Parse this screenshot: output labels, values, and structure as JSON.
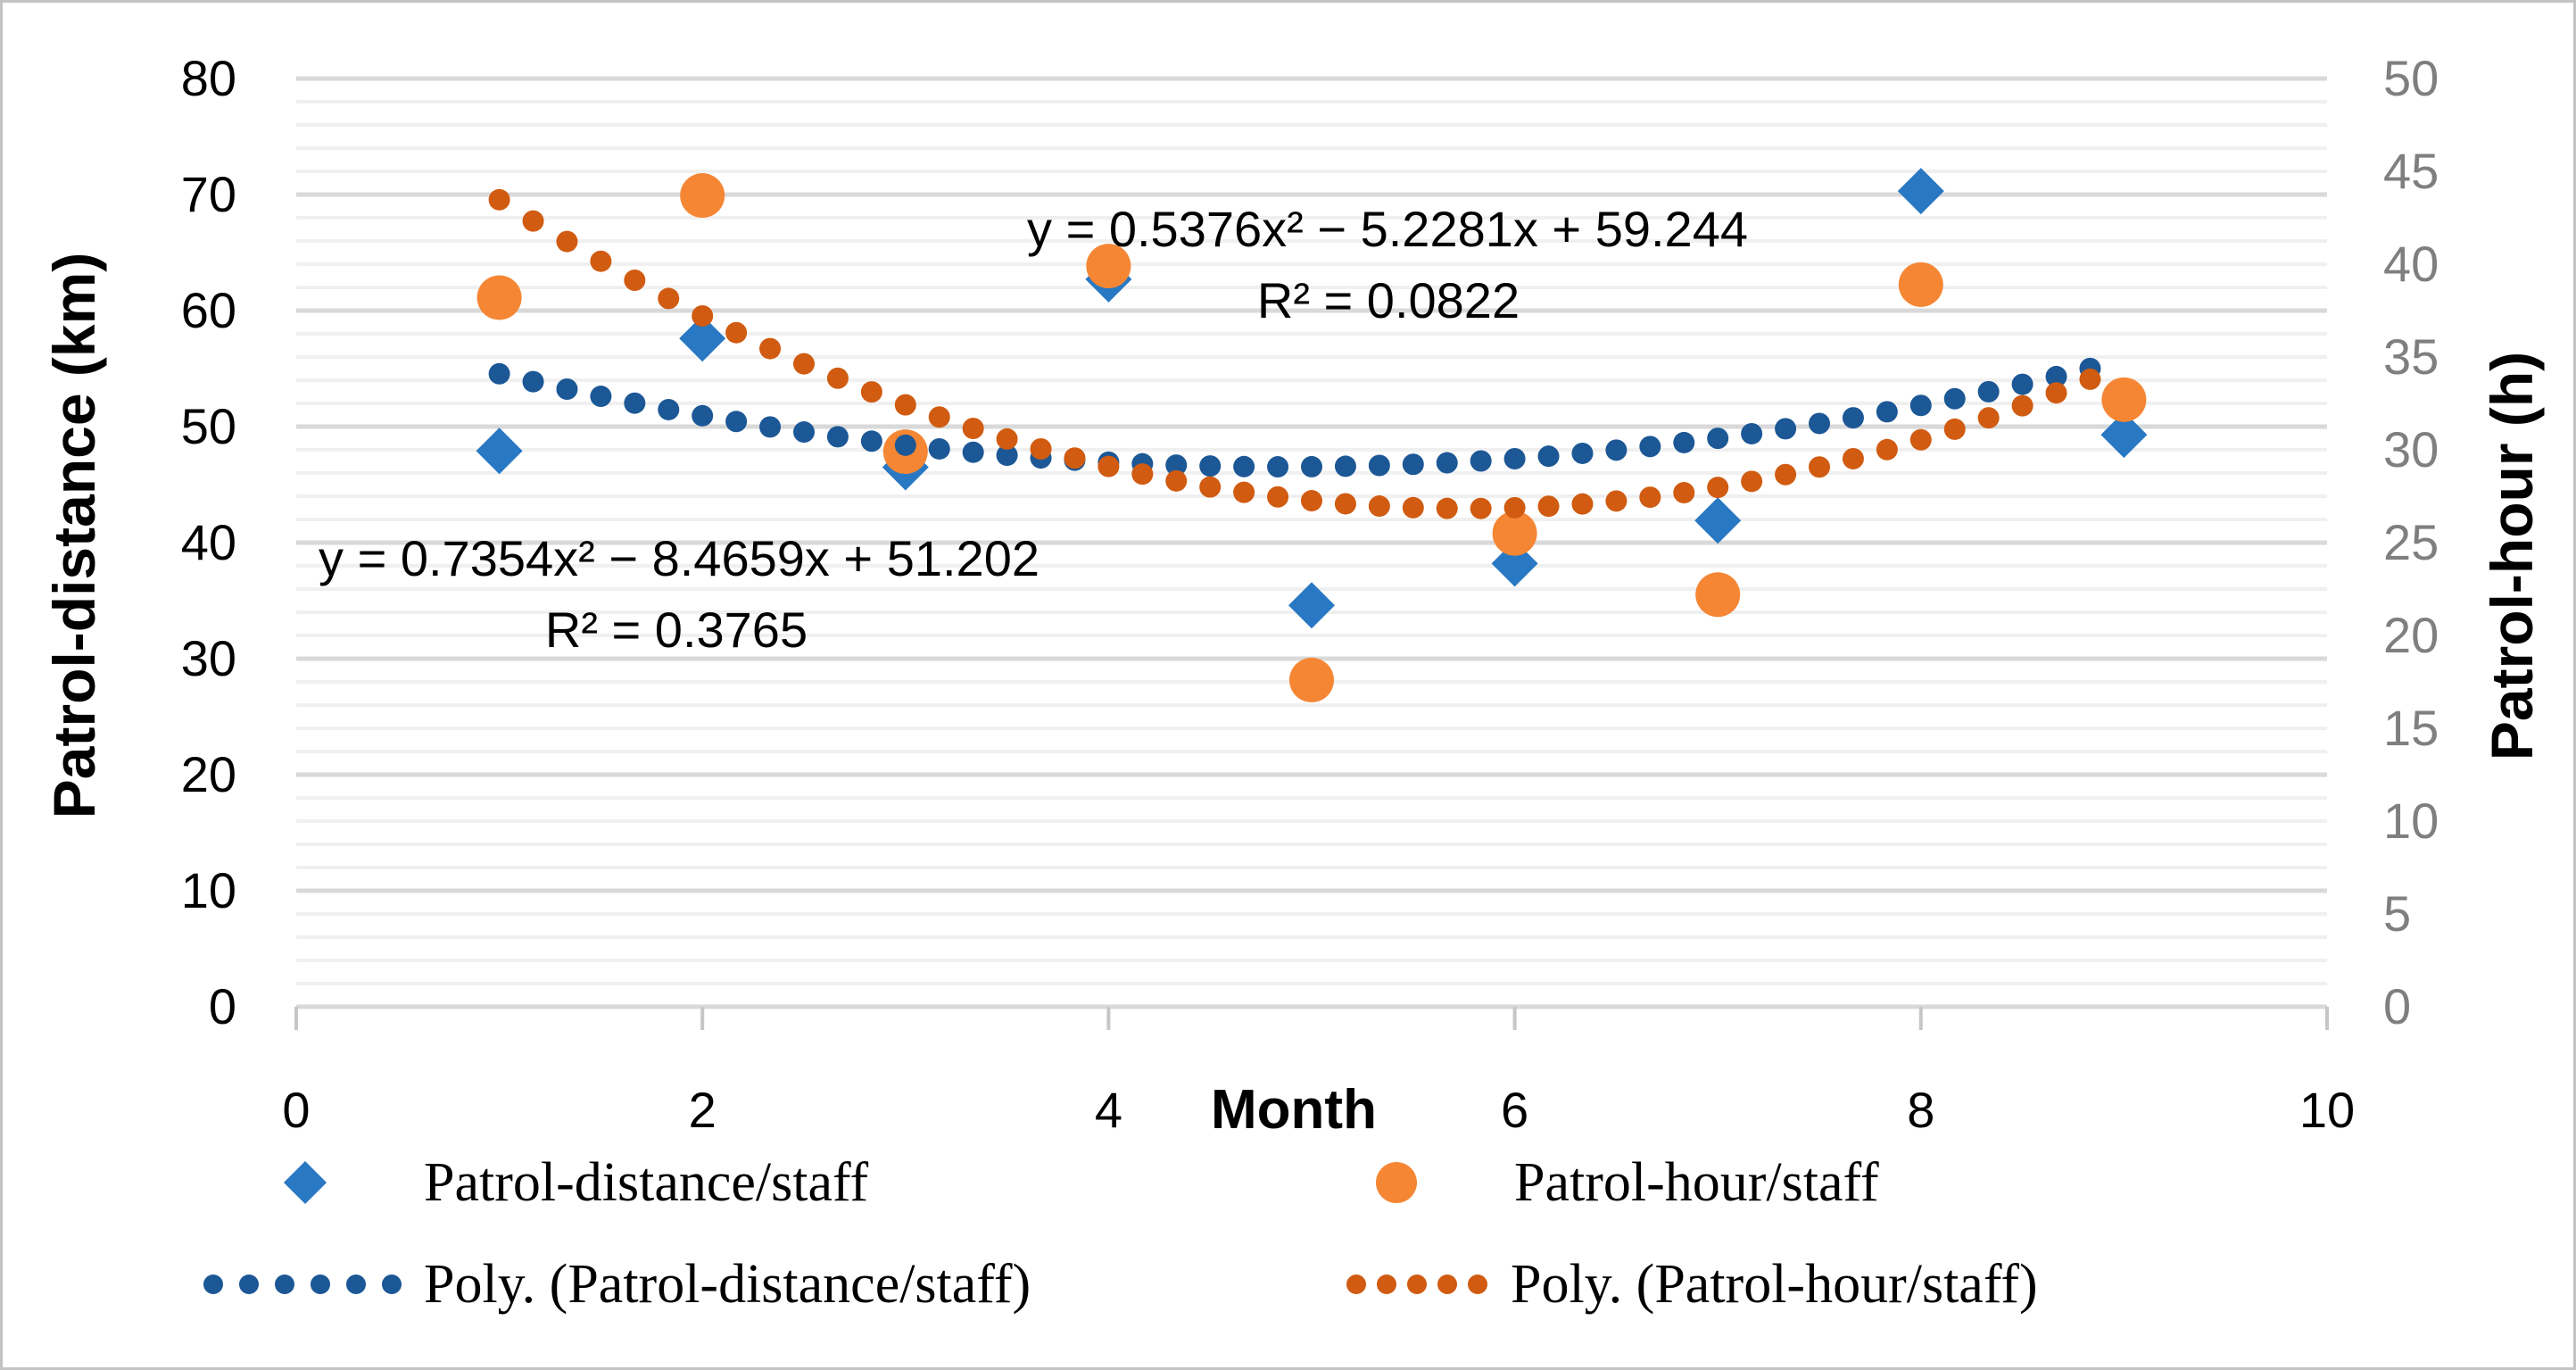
{
  "chart_data": {
    "type": "scatter",
    "title": "",
    "x_axis": {
      "label": "Month",
      "min": 0,
      "max": 10,
      "ticks": [
        0,
        2,
        4,
        6,
        8,
        10
      ]
    },
    "left_axis": {
      "label": "Patrol-distance (km)",
      "min": 0,
      "max": 80,
      "minor_step": 2,
      "ticks": [
        0,
        10,
        20,
        30,
        40,
        50,
        60,
        70,
        80
      ]
    },
    "right_axis": {
      "label": "Patrol-hour (h)",
      "min": 0,
      "max": 50,
      "ticks": [
        0,
        5,
        10,
        15,
        20,
        25,
        30,
        35,
        40,
        45,
        50
      ]
    },
    "series": [
      {
        "name": "Patrol-distance/staff",
        "axis": "left",
        "marker": "diamond",
        "color": "#2878C4",
        "x": [
          1,
          2,
          3,
          4,
          5,
          6,
          7,
          8,
          9
        ],
        "y": [
          47.9,
          57.6,
          46.5,
          62.7,
          34.6,
          38.2,
          41.9,
          70.3,
          49.3
        ]
      },
      {
        "name": "Patrol-hour/staff",
        "axis": "right",
        "marker": "circle",
        "color": "#F58634",
        "x": [
          1,
          2,
          3,
          4,
          5,
          6,
          7,
          8,
          9
        ],
        "y": [
          38.2,
          43.7,
          29.9,
          39.9,
          17.6,
          25.5,
          22.2,
          38.9,
          32.7
        ]
      }
    ],
    "trendlines": [
      {
        "name": "Poly. (Patrol-distance/staff)",
        "axis": "left",
        "color": "#1C5796",
        "coefficients": {
          "a": 0.5376,
          "b": -5.2281,
          "c": 59.244
        },
        "r_squared": 0.0822,
        "x_start": 1,
        "x_end": 8.85,
        "equation_text": "y = 0.5376x² − 5.2281x + 59.244",
        "r2_text": "R² = 0.0822"
      },
      {
        "name": "Poly. (Patrol-hour/staff)",
        "axis": "right",
        "color": "#D05B11",
        "coefficients": {
          "a": 0.7354,
          "b": -8.4659,
          "c": 51.202
        },
        "r_squared": 0.3765,
        "x_start": 1,
        "x_end": 8.85,
        "equation_text": "y = 0.7354x² − 8.4659x + 51.202",
        "r2_text": "R² = 0.3765"
      }
    ],
    "grid": {
      "minor_color": "#F0F0F0",
      "major_color": "#D9D9D9",
      "axis_tick_color": "#C6C6C6",
      "right_tick_label_color": "#7F7F7F"
    }
  },
  "legend": {
    "items": [
      {
        "label": "Patrol-distance/staff",
        "marker": "diamond",
        "color": "#2878C4"
      },
      {
        "label": "Patrol-hour/staff",
        "marker": "circle",
        "color": "#F58634"
      },
      {
        "label": "Poly. (Patrol-distance/staff)",
        "marker": "dotted-line",
        "color": "#1C5796"
      },
      {
        "label": "Poly. (Patrol-hour/staff)",
        "marker": "dotted-line",
        "color": "#D05B11"
      }
    ]
  }
}
